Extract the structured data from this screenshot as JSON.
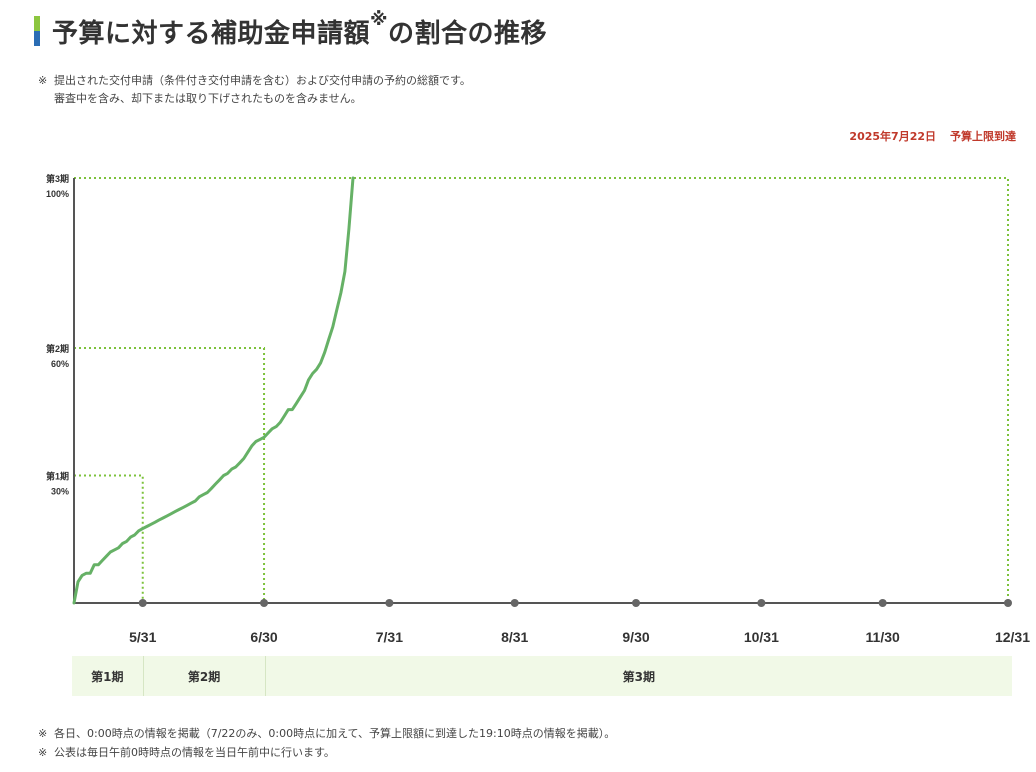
{
  "page": {
    "title": "予算に対する補助金申請額",
    "title_mark": "※",
    "title_suffix": "の割合の推移",
    "note_mark": "※",
    "note_line1": "提出された交付申請（条件付き交付申請を含む）および交付申請の予約の総額です。",
    "note_line2": "審査中を含み、却下または取り下げされたものを含みません。",
    "status_date": "2025年7月22日",
    "status_text": "予算上限到達",
    "bottom_notes": [
      "各日、0:00時点の情報を掲載（7/22のみ、0:00時点に加えて、予算上限額に到達した19:10時点の情報を掲載）。",
      "公表は毎日午前0時時点の情報を当日午前中に行います。"
    ]
  },
  "colors": {
    "line": "#66b166",
    "threshold": "#7cc23b",
    "axis": "#555555",
    "status": "#c0392b",
    "band": "#f1f9e7"
  },
  "chart_data": {
    "type": "line",
    "title": "予算に対する補助金申請額※の割合の推移",
    "xlabel": "",
    "ylabel": "",
    "x_ticks": [
      "5/31",
      "6/30",
      "7/31",
      "8/31",
      "9/30",
      "10/31",
      "11/30",
      "12/31"
    ],
    "x_tick_dates": [
      "2025-05-31",
      "2025-06-30",
      "2025-07-31",
      "2025-08-31",
      "2025-09-30",
      "2025-10-31",
      "2025-11-30",
      "2025-12-31"
    ],
    "xlim": [
      "2025-05-14",
      "2025-12-31"
    ],
    "ylim": [
      0,
      100
    ],
    "thresholds": [
      {
        "label": "第1期",
        "value_label": "30%",
        "value": 30,
        "end_date": "2025-05-31"
      },
      {
        "label": "第2期",
        "value_label": "60%",
        "value": 60,
        "end_date": "2025-06-30"
      },
      {
        "label": "第3期",
        "value_label": "100%",
        "value": 100,
        "end_date": "2025-12-31"
      }
    ],
    "periods": [
      {
        "label": "第1期",
        "end_date": "2025-05-31"
      },
      {
        "label": "第2期",
        "end_date": "2025-06-30"
      },
      {
        "label": "第3期",
        "end_date": "2025-12-31"
      }
    ],
    "series": [
      {
        "values": [
          [
            "2025-05-14",
            0
          ],
          [
            "2025-05-15",
            5
          ],
          [
            "2025-05-16",
            6.5
          ],
          [
            "2025-05-17",
            7.0
          ],
          [
            "2025-05-18",
            7.0
          ],
          [
            "2025-05-19",
            9.0
          ],
          [
            "2025-05-20",
            9.0
          ],
          [
            "2025-05-21",
            10.0
          ],
          [
            "2025-05-22",
            11.0
          ],
          [
            "2025-05-23",
            12.0
          ],
          [
            "2025-05-24",
            12.5
          ],
          [
            "2025-05-25",
            13.0
          ],
          [
            "2025-05-26",
            14.0
          ],
          [
            "2025-05-27",
            14.5
          ],
          [
            "2025-05-28",
            15.5
          ],
          [
            "2025-05-29",
            16.0
          ],
          [
            "2025-05-30",
            17.0
          ],
          [
            "2025-05-31",
            17.5
          ],
          [
            "2025-06-01",
            18.0
          ],
          [
            "2025-06-02",
            18.5
          ],
          [
            "2025-06-03",
            19.0
          ],
          [
            "2025-06-04",
            19.5
          ],
          [
            "2025-06-05",
            20.0
          ],
          [
            "2025-06-06",
            20.5
          ],
          [
            "2025-06-07",
            21.0
          ],
          [
            "2025-06-08",
            21.5
          ],
          [
            "2025-06-09",
            22.0
          ],
          [
            "2025-06-10",
            22.5
          ],
          [
            "2025-06-11",
            23.0
          ],
          [
            "2025-06-12",
            23.5
          ],
          [
            "2025-06-13",
            24.0
          ],
          [
            "2025-06-14",
            25.0
          ],
          [
            "2025-06-15",
            25.5
          ],
          [
            "2025-06-16",
            26.0
          ],
          [
            "2025-06-17",
            27.0
          ],
          [
            "2025-06-18",
            28.0
          ],
          [
            "2025-06-19",
            29.0
          ],
          [
            "2025-06-20",
            30.0
          ],
          [
            "2025-06-21",
            30.5
          ],
          [
            "2025-06-22",
            31.5
          ],
          [
            "2025-06-23",
            32.0
          ],
          [
            "2025-06-24",
            33.0
          ],
          [
            "2025-06-25",
            34.0
          ],
          [
            "2025-06-26",
            35.5
          ],
          [
            "2025-06-27",
            37.0
          ],
          [
            "2025-06-28",
            38.0
          ],
          [
            "2025-06-29",
            38.5
          ],
          [
            "2025-06-30",
            39.0
          ],
          [
            "2025-07-01",
            40.0
          ],
          [
            "2025-07-02",
            41.0
          ],
          [
            "2025-07-03",
            41.5
          ],
          [
            "2025-07-04",
            42.5
          ],
          [
            "2025-07-05",
            44.0
          ],
          [
            "2025-07-06",
            45.5
          ],
          [
            "2025-07-07",
            45.5
          ],
          [
            "2025-07-08",
            47.0
          ],
          [
            "2025-07-09",
            48.5
          ],
          [
            "2025-07-10",
            50.0
          ],
          [
            "2025-07-11",
            52.5
          ],
          [
            "2025-07-12",
            54.0
          ],
          [
            "2025-07-13",
            55.0
          ],
          [
            "2025-07-14",
            56.5
          ],
          [
            "2025-07-15",
            59.0
          ],
          [
            "2025-07-16",
            62.0
          ],
          [
            "2025-07-17",
            65.0
          ],
          [
            "2025-07-18",
            69.0
          ],
          [
            "2025-07-19",
            73.0
          ],
          [
            "2025-07-20",
            78.0
          ],
          [
            "2025-07-21",
            88.0
          ],
          [
            "2025-07-22",
            100.0
          ]
        ]
      }
    ]
  }
}
